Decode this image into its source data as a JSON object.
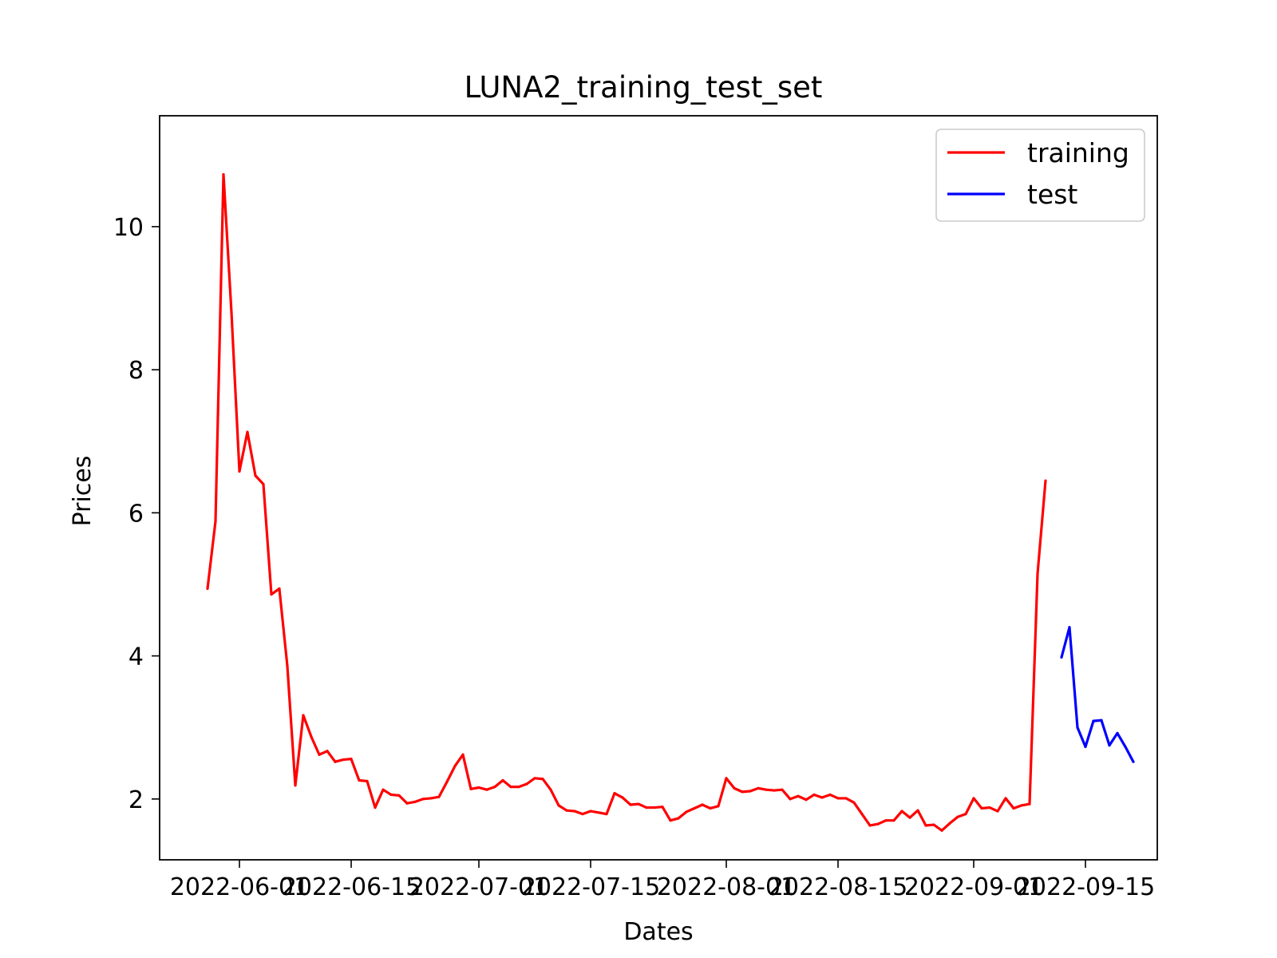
{
  "colors": {
    "training": "#ff0000",
    "test": "#0000ff",
    "background": "#ffffff"
  },
  "chart_data": {
    "type": "line",
    "title": "LUNA2_training_test_set",
    "xlabel": "Dates",
    "ylabel": "Prices",
    "x_tick_labels": [
      "2022-06-01",
      "2022-06-15",
      "2022-07-01",
      "2022-07-15",
      "2022-08-01",
      "2022-08-15",
      "2022-09-01",
      "2022-09-15"
    ],
    "y_ticks": [
      2,
      4,
      6,
      8,
      10
    ],
    "xlim": [
      "2022-05-22",
      "2022-09-24"
    ],
    "ylim": [
      1.15,
      11.55
    ],
    "grid": false,
    "legend": "top-right",
    "series": [
      {
        "name": "training",
        "color": "#ff0000",
        "x": [
          "2022-05-28",
          "2022-05-29",
          "2022-05-30",
          "2022-05-31",
          "2022-06-01",
          "2022-06-02",
          "2022-06-03",
          "2022-06-04",
          "2022-06-05",
          "2022-06-06",
          "2022-06-07",
          "2022-06-08",
          "2022-06-09",
          "2022-06-10",
          "2022-06-11",
          "2022-06-12",
          "2022-06-13",
          "2022-06-14",
          "2022-06-15",
          "2022-06-16",
          "2022-06-17",
          "2022-06-18",
          "2022-06-19",
          "2022-06-20",
          "2022-06-21",
          "2022-06-22",
          "2022-06-23",
          "2022-06-24",
          "2022-06-25",
          "2022-06-26",
          "2022-06-27",
          "2022-06-28",
          "2022-06-29",
          "2022-06-30",
          "2022-07-01",
          "2022-07-02",
          "2022-07-03",
          "2022-07-04",
          "2022-07-05",
          "2022-07-06",
          "2022-07-07",
          "2022-07-08",
          "2022-07-09",
          "2022-07-10",
          "2022-07-11",
          "2022-07-12",
          "2022-07-13",
          "2022-07-14",
          "2022-07-15",
          "2022-07-16",
          "2022-07-17",
          "2022-07-18",
          "2022-07-19",
          "2022-07-20",
          "2022-07-21",
          "2022-07-22",
          "2022-07-23",
          "2022-07-24",
          "2022-07-25",
          "2022-07-26",
          "2022-07-27",
          "2022-07-28",
          "2022-07-29",
          "2022-07-30",
          "2022-07-31",
          "2022-08-01",
          "2022-08-02",
          "2022-08-03",
          "2022-08-04",
          "2022-08-05",
          "2022-08-06",
          "2022-08-07",
          "2022-08-08",
          "2022-08-09",
          "2022-08-10",
          "2022-08-11",
          "2022-08-12",
          "2022-08-13",
          "2022-08-14",
          "2022-08-15",
          "2022-08-16",
          "2022-08-17",
          "2022-08-18",
          "2022-08-19",
          "2022-08-20",
          "2022-08-21",
          "2022-08-22",
          "2022-08-23",
          "2022-08-24",
          "2022-08-25",
          "2022-08-26",
          "2022-08-27",
          "2022-08-28",
          "2022-08-29",
          "2022-08-30",
          "2022-08-31",
          "2022-09-01",
          "2022-09-02",
          "2022-09-03",
          "2022-09-04",
          "2022-09-05",
          "2022-09-06",
          "2022-09-07",
          "2022-09-08",
          "2022-09-09",
          "2022-09-10"
        ],
        "values": [
          4.94,
          5.88,
          10.73,
          8.8,
          6.58,
          7.13,
          6.52,
          6.4,
          4.86,
          4.94,
          3.86,
          2.19,
          3.17,
          2.87,
          2.62,
          2.67,
          2.52,
          2.55,
          2.56,
          2.26,
          2.25,
          1.88,
          2.13,
          2.06,
          2.05,
          1.94,
          1.96,
          2.0,
          2.01,
          2.03,
          2.24,
          2.46,
          2.62,
          2.14,
          2.16,
          2.13,
          2.17,
          2.26,
          2.17,
          2.17,
          2.21,
          2.29,
          2.28,
          2.13,
          1.91,
          1.84,
          1.83,
          1.79,
          1.83,
          1.81,
          1.79,
          2.08,
          2.02,
          1.92,
          1.93,
          1.88,
          1.88,
          1.89,
          1.7,
          1.73,
          1.82,
          1.87,
          1.92,
          1.87,
          1.9,
          2.29,
          2.15,
          2.1,
          2.11,
          2.15,
          2.13,
          2.12,
          2.13,
          2.0,
          2.04,
          1.99,
          2.06,
          2.02,
          2.06,
          2.01,
          2.01,
          1.95,
          1.79,
          1.63,
          1.65,
          1.7,
          1.7,
          1.83,
          1.74,
          1.84,
          1.63,
          1.64,
          1.56,
          1.66,
          1.75,
          1.79,
          2.01,
          1.87,
          1.88,
          1.83,
          2.01,
          1.87,
          1.91,
          1.93,
          5.15,
          6.45
        ]
      },
      {
        "name": "test",
        "color": "#0000ff",
        "x": [
          "2022-09-12",
          "2022-09-13",
          "2022-09-14",
          "2022-09-15",
          "2022-09-16",
          "2022-09-17",
          "2022-09-18",
          "2022-09-19",
          "2022-09-20",
          "2022-09-21"
        ],
        "values": [
          3.98,
          4.4,
          3.0,
          2.73,
          3.09,
          3.1,
          2.75,
          2.92,
          2.73,
          2.52
        ]
      }
    ]
  }
}
